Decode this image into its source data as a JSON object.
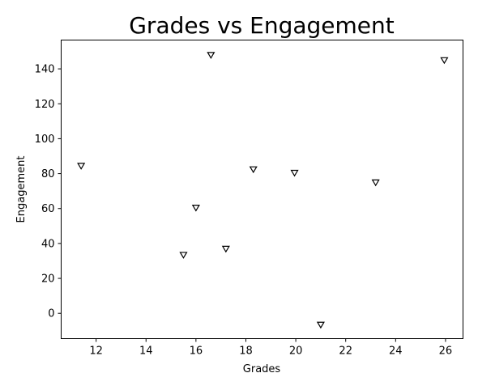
{
  "chart_data": {
    "type": "scatter",
    "title": "Grades vs Engagement",
    "xlabel": "Grades",
    "ylabel": "Engagement",
    "xlim": [
      10.6,
      26.7
    ],
    "ylim": [
      -14.5,
      156.5
    ],
    "xticks": [
      12,
      14,
      16,
      18,
      20,
      22,
      24,
      26
    ],
    "yticks": [
      0,
      20,
      40,
      60,
      80,
      100,
      120,
      140
    ],
    "grid": false,
    "marker": "triangle-down",
    "marker_color": "#000000",
    "points": [
      {
        "x": 11.4,
        "y": 84.5
      },
      {
        "x": 15.5,
        "y": 33.5
      },
      {
        "x": 16.0,
        "y": 60.5
      },
      {
        "x": 16.6,
        "y": 148.0
      },
      {
        "x": 17.2,
        "y": 37.0
      },
      {
        "x": 18.3,
        "y": 82.5
      },
      {
        "x": 19.95,
        "y": 80.5
      },
      {
        "x": 21.0,
        "y": -6.5
      },
      {
        "x": 23.2,
        "y": 75.0
      },
      {
        "x": 25.95,
        "y": 145.0
      }
    ]
  }
}
